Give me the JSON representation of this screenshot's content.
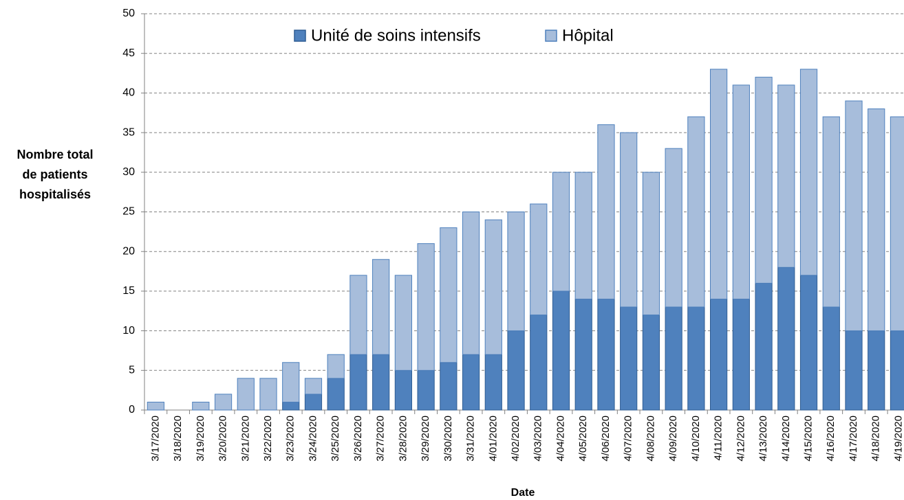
{
  "chart_data": {
    "type": "stacked_bar",
    "ylabel": [
      "Nombre total",
      "de patients",
      "hospitalisés"
    ],
    "xlabel": "Date",
    "categories": [
      "3/17/2020",
      "3/18/2020",
      "3/19/2020",
      "3/20/2020",
      "3/21/2020",
      "3/22/2020",
      "3/23/2020",
      "3/24/2020",
      "3/25/2020",
      "3/26/2020",
      "3/27/2020",
      "3/28/2020",
      "3/29/2020",
      "3/30/2020",
      "3/31/2020",
      "4/01/2020",
      "4/02/2020",
      "4/03/2020",
      "4/04/2020",
      "4/05/2020",
      "4/06/2020",
      "4/07/2020",
      "4/08/2020",
      "4/09/2020",
      "4/10/2020",
      "4/11/2020",
      "4/12/2020",
      "4/13/2020",
      "4/14/2020",
      "4/15/2020",
      "4/16/2020",
      "4/17/2020",
      "4/18/2020",
      "4/19/2020"
    ],
    "series": [
      {
        "name": "Unité de soins intensifs",
        "color": "#4f81bd",
        "values": [
          0,
          0,
          0,
          0,
          0,
          0,
          1,
          2,
          4,
          7,
          7,
          5,
          5,
          6,
          7,
          7,
          10,
          12,
          15,
          14,
          14,
          13,
          12,
          13,
          13,
          14,
          14,
          16,
          18,
          17,
          13,
          10,
          10,
          10
        ]
      },
      {
        "name": "Hôpital",
        "color": "#a7bddb",
        "values": [
          1,
          0,
          1,
          2,
          4,
          4,
          5,
          2,
          3,
          10,
          12,
          12,
          16,
          17,
          18,
          17,
          15,
          14,
          15,
          16,
          22,
          22,
          18,
          20,
          24,
          29,
          27,
          26,
          23,
          26,
          24,
          29,
          28,
          27
        ]
      }
    ],
    "ylim": [
      0,
      50
    ],
    "yticks": [
      0,
      5,
      10,
      15,
      20,
      25,
      30,
      35,
      40,
      45,
      50
    ],
    "grid": true,
    "legend": "top"
  }
}
